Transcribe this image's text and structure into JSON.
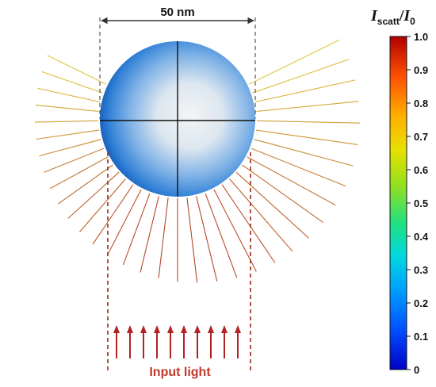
{
  "diagram": {
    "dimension_label": "50 nm",
    "input_label": "Input light",
    "colorbar": {
      "title_main": "I",
      "title_sub_numerator": "scatt",
      "title_separator": "/",
      "title_main_denominator": "I",
      "title_sub_denominator": "0",
      "ticks": [
        "1.0",
        "0.9",
        "0.8",
        "0.7",
        "0.6",
        "0.5",
        "0.4",
        "0.3",
        "0.2",
        "0.1",
        "0"
      ],
      "gradient_colors": [
        "#0000c8",
        "#0060ff",
        "#00b8ff",
        "#00e0c0",
        "#40e040",
        "#c8e000",
        "#ffd000",
        "#ff8000",
        "#e02000",
        "#b00000"
      ]
    },
    "colors": {
      "sphere_edge": "#1565c0",
      "sphere_center": "#f2f2f2",
      "input_arrow": "#b22222",
      "input_label": "#c0392b",
      "dashed": "#555555",
      "boundary_dashed": "#9b2a1a"
    }
  }
}
